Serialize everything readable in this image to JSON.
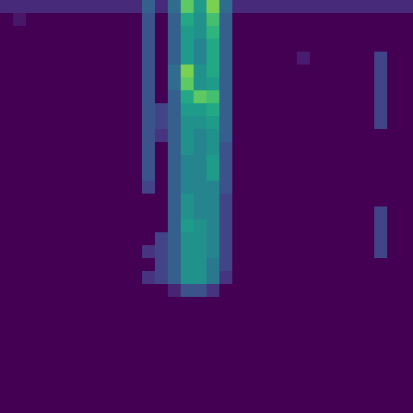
{
  "chart_data": {
    "type": "heatmap",
    "tick_labels": false,
    "xlim": [
      0,
      32
    ],
    "ylim": [
      0,
      32
    ],
    "color_range": [
      0,
      1
    ],
    "values": [
      [
        0.12,
        0.12,
        0.12,
        0.12,
        0.12,
        0.12,
        0.12,
        0.12,
        0.12,
        0.12,
        0.12,
        0.3,
        0.12,
        0.35,
        0.75,
        0.55,
        0.8,
        0.35,
        0.12,
        0.12,
        0.12,
        0.12,
        0.12,
        0.12,
        0.12,
        0.12,
        0.12,
        0.12,
        0.12,
        0.12,
        0.12,
        0.12
      ],
      [
        0,
        0.06,
        0,
        0,
        0,
        0,
        0,
        0,
        0,
        0,
        0,
        0.25,
        0,
        0.3,
        0.6,
        0.5,
        0.7,
        0.3,
        0,
        0,
        0,
        0,
        0,
        0,
        0,
        0,
        0,
        0,
        0,
        0,
        0,
        0
      ],
      [
        0,
        0,
        0,
        0,
        0,
        0,
        0,
        0,
        0,
        0,
        0,
        0.25,
        0,
        0.3,
        0.55,
        0.5,
        0.65,
        0.3,
        0,
        0,
        0,
        0,
        0,
        0,
        0,
        0,
        0,
        0,
        0,
        0,
        0,
        0
      ],
      [
        0,
        0,
        0,
        0,
        0,
        0,
        0,
        0,
        0,
        0,
        0,
        0.25,
        0,
        0.3,
        0.55,
        0.45,
        0.6,
        0.3,
        0,
        0,
        0,
        0,
        0,
        0,
        0,
        0,
        0,
        0,
        0,
        0,
        0,
        0
      ],
      [
        0,
        0,
        0,
        0,
        0,
        0,
        0,
        0,
        0,
        0,
        0,
        0.25,
        0,
        0.3,
        0.55,
        0.45,
        0.6,
        0.3,
        0,
        0,
        0,
        0,
        0,
        0.08,
        0,
        0,
        0,
        0,
        0,
        0.2,
        0,
        0
      ],
      [
        0,
        0,
        0,
        0,
        0,
        0,
        0,
        0,
        0,
        0,
        0,
        0.25,
        0,
        0.35,
        0.8,
        0.5,
        0.6,
        0.3,
        0,
        0,
        0,
        0,
        0,
        0,
        0,
        0,
        0,
        0,
        0,
        0.2,
        0,
        0
      ],
      [
        0,
        0,
        0,
        0,
        0,
        0,
        0,
        0,
        0,
        0,
        0,
        0.25,
        0,
        0.35,
        0.75,
        0.5,
        0.55,
        0.3,
        0,
        0,
        0,
        0,
        0,
        0,
        0,
        0,
        0,
        0,
        0,
        0.2,
        0,
        0
      ],
      [
        0,
        0,
        0,
        0,
        0,
        0,
        0,
        0,
        0,
        0,
        0,
        0.25,
        0,
        0.3,
        0.6,
        0.75,
        0.7,
        0.3,
        0,
        0,
        0,
        0,
        0,
        0,
        0,
        0,
        0,
        0,
        0,
        0.2,
        0,
        0
      ],
      [
        0,
        0,
        0,
        0,
        0,
        0,
        0,
        0,
        0,
        0,
        0,
        0.25,
        0.2,
        0.3,
        0.55,
        0.55,
        0.6,
        0.3,
        0,
        0,
        0,
        0,
        0,
        0,
        0,
        0,
        0,
        0,
        0,
        0.2,
        0,
        0
      ],
      [
        0,
        0,
        0,
        0,
        0,
        0,
        0,
        0,
        0,
        0,
        0,
        0.25,
        0.2,
        0.3,
        0.5,
        0.5,
        0.55,
        0.3,
        0,
        0,
        0,
        0,
        0,
        0,
        0,
        0,
        0,
        0,
        0,
        0.2,
        0,
        0
      ],
      [
        0,
        0,
        0,
        0,
        0,
        0,
        0,
        0,
        0,
        0,
        0,
        0.25,
        0.15,
        0.3,
        0.5,
        0.45,
        0.5,
        0.3,
        0,
        0,
        0,
        0,
        0,
        0,
        0,
        0,
        0,
        0,
        0,
        0,
        0,
        0
      ],
      [
        0,
        0,
        0,
        0,
        0,
        0,
        0,
        0,
        0,
        0,
        0,
        0.25,
        0,
        0.3,
        0.5,
        0.45,
        0.5,
        0.25,
        0,
        0,
        0,
        0,
        0,
        0,
        0,
        0,
        0,
        0,
        0,
        0,
        0,
        0
      ],
      [
        0,
        0,
        0,
        0,
        0,
        0,
        0,
        0,
        0,
        0,
        0,
        0.25,
        0,
        0.3,
        0.45,
        0.45,
        0.55,
        0.25,
        0,
        0,
        0,
        0,
        0,
        0,
        0,
        0,
        0,
        0,
        0,
        0,
        0,
        0
      ],
      [
        0,
        0,
        0,
        0,
        0,
        0,
        0,
        0,
        0,
        0,
        0,
        0.25,
        0,
        0.3,
        0.45,
        0.45,
        0.55,
        0.25,
        0,
        0,
        0,
        0,
        0,
        0,
        0,
        0,
        0,
        0,
        0,
        0,
        0,
        0
      ],
      [
        0,
        0,
        0,
        0,
        0,
        0,
        0,
        0,
        0,
        0,
        0,
        0.2,
        0,
        0.3,
        0.45,
        0.45,
        0.45,
        0.25,
        0,
        0,
        0,
        0,
        0,
        0,
        0,
        0,
        0,
        0,
        0,
        0,
        0,
        0
      ],
      [
        0,
        0,
        0,
        0,
        0,
        0,
        0,
        0,
        0,
        0,
        0,
        0,
        0,
        0.3,
        0.5,
        0.45,
        0.45,
        0.2,
        0,
        0,
        0,
        0,
        0,
        0,
        0,
        0,
        0,
        0,
        0,
        0,
        0,
        0
      ],
      [
        0,
        0,
        0,
        0,
        0,
        0,
        0,
        0,
        0,
        0,
        0,
        0,
        0,
        0.3,
        0.5,
        0.45,
        0.45,
        0.2,
        0,
        0,
        0,
        0,
        0,
        0,
        0,
        0,
        0,
        0,
        0,
        0.2,
        0,
        0
      ],
      [
        0,
        0,
        0,
        0,
        0,
        0,
        0,
        0,
        0,
        0,
        0,
        0,
        0,
        0.3,
        0.55,
        0.5,
        0.45,
        0.2,
        0,
        0,
        0,
        0,
        0,
        0,
        0,
        0,
        0,
        0,
        0,
        0.2,
        0,
        0
      ],
      [
        0,
        0,
        0,
        0,
        0,
        0,
        0,
        0,
        0,
        0,
        0,
        0,
        0.2,
        0.3,
        0.5,
        0.5,
        0.45,
        0.2,
        0,
        0,
        0,
        0,
        0,
        0,
        0,
        0,
        0,
        0,
        0,
        0.2,
        0,
        0
      ],
      [
        0,
        0,
        0,
        0,
        0,
        0,
        0,
        0,
        0,
        0,
        0,
        0.15,
        0.2,
        0.3,
        0.5,
        0.5,
        0.45,
        0.2,
        0,
        0,
        0,
        0,
        0,
        0,
        0,
        0,
        0,
        0,
        0,
        0.2,
        0,
        0
      ],
      [
        0,
        0,
        0,
        0,
        0,
        0,
        0,
        0,
        0,
        0,
        0,
        0,
        0.2,
        0.3,
        0.5,
        0.5,
        0.4,
        0.2,
        0,
        0,
        0,
        0,
        0,
        0,
        0,
        0,
        0,
        0,
        0,
        0,
        0,
        0
      ],
      [
        0,
        0,
        0,
        0,
        0,
        0,
        0,
        0,
        0,
        0,
        0,
        0.15,
        0.2,
        0.3,
        0.5,
        0.5,
        0.4,
        0.15,
        0,
        0,
        0,
        0,
        0,
        0,
        0,
        0,
        0,
        0,
        0,
        0,
        0,
        0
      ],
      [
        0,
        0,
        0,
        0,
        0,
        0,
        0,
        0,
        0,
        0,
        0,
        0,
        0,
        0.1,
        0.25,
        0.25,
        0.15,
        0,
        0,
        0,
        0,
        0,
        0,
        0,
        0,
        0,
        0,
        0,
        0,
        0,
        0,
        0
      ],
      [
        0,
        0,
        0,
        0,
        0,
        0,
        0,
        0,
        0,
        0,
        0,
        0,
        0,
        0,
        0,
        0,
        0,
        0,
        0,
        0,
        0,
        0,
        0,
        0,
        0,
        0,
        0,
        0,
        0,
        0,
        0,
        0
      ],
      [
        0,
        0,
        0,
        0,
        0,
        0,
        0,
        0,
        0,
        0,
        0,
        0,
        0,
        0,
        0,
        0,
        0,
        0,
        0,
        0,
        0,
        0,
        0,
        0,
        0,
        0,
        0,
        0,
        0,
        0,
        0,
        0
      ],
      [
        0,
        0,
        0,
        0,
        0,
        0,
        0,
        0,
        0,
        0,
        0,
        0,
        0,
        0,
        0,
        0,
        0,
        0,
        0,
        0,
        0,
        0,
        0,
        0,
        0,
        0,
        0,
        0,
        0,
        0,
        0,
        0
      ],
      [
        0,
        0,
        0,
        0,
        0,
        0,
        0,
        0,
        0,
        0,
        0,
        0,
        0,
        0,
        0,
        0,
        0,
        0,
        0,
        0,
        0,
        0,
        0,
        0,
        0,
        0,
        0,
        0,
        0,
        0,
        0,
        0
      ],
      [
        0,
        0,
        0,
        0,
        0,
        0,
        0,
        0,
        0,
        0,
        0,
        0,
        0,
        0,
        0,
        0,
        0,
        0,
        0,
        0,
        0,
        0,
        0,
        0,
        0,
        0,
        0,
        0,
        0,
        0,
        0,
        0
      ],
      [
        0,
        0,
        0,
        0,
        0,
        0,
        0,
        0,
        0,
        0,
        0,
        0,
        0,
        0,
        0,
        0,
        0,
        0,
        0,
        0,
        0,
        0,
        0,
        0,
        0,
        0,
        0,
        0,
        0,
        0,
        0,
        0
      ],
      [
        0,
        0,
        0,
        0,
        0,
        0,
        0,
        0,
        0,
        0,
        0,
        0,
        0,
        0,
        0,
        0,
        0,
        0,
        0,
        0,
        0,
        0,
        0,
        0,
        0,
        0,
        0,
        0,
        0,
        0,
        0,
        0
      ],
      [
        0,
        0,
        0,
        0,
        0,
        0,
        0,
        0,
        0,
        0,
        0,
        0,
        0,
        0,
        0,
        0,
        0,
        0,
        0,
        0,
        0,
        0,
        0,
        0,
        0,
        0,
        0,
        0,
        0,
        0,
        0,
        0
      ],
      [
        0,
        0,
        0,
        0,
        0,
        0,
        0,
        0,
        0,
        0,
        0,
        0,
        0,
        0,
        0,
        0,
        0,
        0,
        0,
        0,
        0,
        0,
        0,
        0,
        0,
        0,
        0,
        0,
        0,
        0,
        0,
        0
      ]
    ]
  }
}
